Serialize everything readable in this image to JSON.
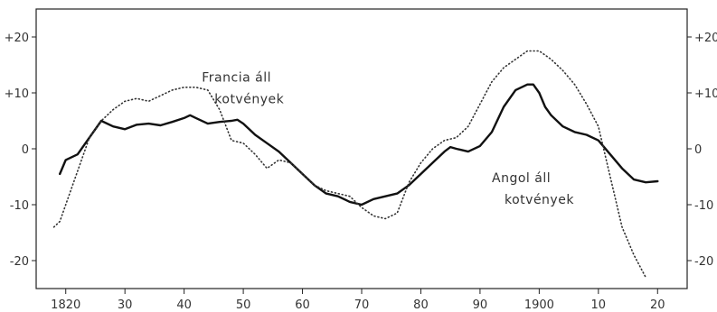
{
  "chart_data": {
    "type": "line",
    "title": "",
    "xlabel": "",
    "ylabel": "",
    "xlim": [
      1815,
      1925
    ],
    "ylim": [
      -25,
      25
    ],
    "grid": false,
    "x_ticks": [
      1820,
      1830,
      1840,
      1850,
      1860,
      1870,
      1880,
      1890,
      1900,
      1910,
      1920
    ],
    "x_tick_labels": [
      "1820",
      "30",
      "40",
      "50",
      "60",
      "70",
      "80",
      "90",
      "1900",
      "10",
      "20"
    ],
    "y_ticks": [
      20,
      10,
      0,
      -10,
      -20
    ],
    "y_tick_labels_left": [
      "+20",
      "+10",
      "0",
      "-10",
      "-20"
    ],
    "y_tick_labels_right": [
      "+20",
      "+10",
      "0",
      "-10",
      "-20"
    ],
    "annotations": [
      {
        "lines": [
          "Francia áll",
          "kotvények"
        ],
        "series": "Francia áll kotvények",
        "x": 1843,
        "y": 12
      },
      {
        "lines": [
          "Angol áll",
          "kotvények"
        ],
        "series": "Angol áll kotvények",
        "x": 1892,
        "y": -6
      }
    ],
    "series": [
      {
        "name": "Angol áll kotvények",
        "style": "solid",
        "color": "#111111",
        "x": [
          1819,
          1820,
          1822,
          1824,
          1826,
          1828,
          1830,
          1832,
          1834,
          1836,
          1838,
          1840,
          1841,
          1842,
          1844,
          1846,
          1848,
          1849,
          1850,
          1852,
          1854,
          1856,
          1858,
          1860,
          1862,
          1864,
          1866,
          1868,
          1870,
          1872,
          1874,
          1876,
          1878,
          1880,
          1882,
          1884,
          1885,
          1886,
          1888,
          1890,
          1892,
          1894,
          1896,
          1898,
          1899,
          1900,
          1901,
          1902,
          1904,
          1906,
          1908,
          1910,
          1912,
          1914,
          1916,
          1918,
          1920
        ],
        "values": [
          -4.5,
          -2,
          -1,
          2,
          5,
          4,
          3.5,
          4.3,
          4.5,
          4.2,
          4.8,
          5.5,
          6,
          5.5,
          4.5,
          4.8,
          5,
          5.2,
          4.5,
          2.5,
          1,
          -0.5,
          -2.5,
          -4.5,
          -6.5,
          -8,
          -8.5,
          -9.5,
          -10,
          -9,
          -8.5,
          -8,
          -6.5,
          -4.5,
          -2.5,
          -0.5,
          0.3,
          0,
          -0.5,
          0.5,
          3,
          7.5,
          10.5,
          11.5,
          11.5,
          10,
          7.5,
          6,
          4,
          3,
          2.5,
          1.5,
          -1,
          -3.5,
          -5.5,
          -6,
          -5.8
        ]
      },
      {
        "name": "Francia áll kotvények",
        "style": "dotted",
        "color": "#333333",
        "x": [
          1818,
          1819,
          1820,
          1822,
          1824,
          1826,
          1828,
          1830,
          1832,
          1834,
          1836,
          1838,
          1840,
          1842,
          1844,
          1846,
          1848,
          1850,
          1852,
          1854,
          1856,
          1858,
          1860,
          1862,
          1864,
          1866,
          1868,
          1870,
          1872,
          1874,
          1876,
          1878,
          1880,
          1882,
          1884,
          1886,
          1888,
          1890,
          1892,
          1894,
          1896,
          1898,
          1900,
          1902,
          1904,
          1906,
          1908,
          1910,
          1912,
          1914,
          1916,
          1918
        ],
        "values": [
          -14,
          -13,
          -10,
          -4,
          2,
          5,
          7,
          8.5,
          9,
          8.5,
          9.5,
          10.5,
          11,
          11,
          10.5,
          7,
          1.5,
          1,
          -1,
          -3.5,
          -2,
          -2.5,
          -4.5,
          -6.5,
          -7.5,
          -8,
          -8.5,
          -10.5,
          -12,
          -12.5,
          -11.5,
          -6,
          -2.5,
          0,
          1.5,
          2,
          4,
          8,
          12,
          14.5,
          16,
          17.5,
          17.5,
          16,
          14,
          11.5,
          8,
          4,
          -5,
          -14,
          -19,
          -23
        ]
      }
    ]
  }
}
